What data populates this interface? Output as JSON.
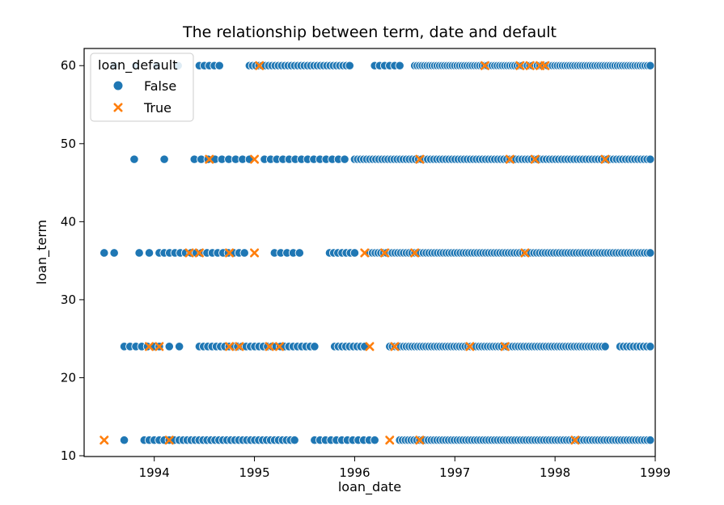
{
  "chart_data": {
    "type": "scatter",
    "title": "The relationship between term, date and default",
    "xlabel": "loan_date",
    "ylabel": "loan_term",
    "xlim": [
      1993.3,
      1999.0
    ],
    "ylim": [
      9.9,
      62.2
    ],
    "x_ticks": [
      1994,
      1995,
      1996,
      1997,
      1998,
      1999
    ],
    "x_tick_labels": [
      "1994",
      "1995",
      "1996",
      "1997",
      "1998",
      "1999"
    ],
    "y_ticks": [
      10,
      20,
      30,
      40,
      50,
      60
    ],
    "y_tick_labels": [
      "10",
      "20",
      "30",
      "40",
      "50",
      "60"
    ],
    "grid": false,
    "legend": {
      "title": "loan_default",
      "placement": "top-left",
      "entries": [
        "False",
        "True"
      ]
    },
    "colors": {
      "False": "#1f77b4",
      "True": "#ff7f0e"
    },
    "series": [
      {
        "name": "False",
        "marker": "circle",
        "ranges": [
          {
            "y": 60,
            "from": 1993.6,
            "to": 1994.45,
            "count": 5
          },
          {
            "y": 60,
            "from": 1994.45,
            "to": 1994.65,
            "count": 5
          },
          {
            "y": 60,
            "from": 1994.95,
            "to": 1995.95,
            "count": 32
          },
          {
            "y": 60,
            "from": 1996.2,
            "to": 1996.45,
            "count": 6
          },
          {
            "y": 60,
            "from": 1996.6,
            "to": 1998.95,
            "count": 95
          },
          {
            "y": 48,
            "from": 1993.8,
            "to": 1993.8,
            "count": 1
          },
          {
            "y": 48,
            "from": 1994.1,
            "to": 1994.1,
            "count": 1
          },
          {
            "y": 48,
            "from": 1994.4,
            "to": 1994.95,
            "count": 9
          },
          {
            "y": 48,
            "from": 1995.1,
            "to": 1995.9,
            "count": 14
          },
          {
            "y": 48,
            "from": 1996.0,
            "to": 1998.95,
            "count": 98
          },
          {
            "y": 36,
            "from": 1993.5,
            "to": 1993.6,
            "count": 2
          },
          {
            "y": 36,
            "from": 1993.85,
            "to": 1994.05,
            "count": 3
          },
          {
            "y": 36,
            "from": 1994.1,
            "to": 1994.9,
            "count": 16
          },
          {
            "y": 36,
            "from": 1995.2,
            "to": 1995.45,
            "count": 5
          },
          {
            "y": 36,
            "from": 1995.75,
            "to": 1996.0,
            "count": 7
          },
          {
            "y": 36,
            "from": 1996.15,
            "to": 1998.95,
            "count": 100
          },
          {
            "y": 24,
            "from": 1993.7,
            "to": 1994.05,
            "count": 7
          },
          {
            "y": 24,
            "from": 1994.15,
            "to": 1994.25,
            "count": 2
          },
          {
            "y": 24,
            "from": 1994.45,
            "to": 1995.6,
            "count": 28
          },
          {
            "y": 24,
            "from": 1995.8,
            "to": 1996.1,
            "count": 9
          },
          {
            "y": 24,
            "from": 1996.35,
            "to": 1998.5,
            "count": 78
          },
          {
            "y": 24,
            "from": 1998.65,
            "to": 1998.95,
            "count": 10
          },
          {
            "y": 12,
            "from": 1993.7,
            "to": 1993.7,
            "count": 1
          },
          {
            "y": 12,
            "from": 1993.9,
            "to": 1994.2,
            "count": 7
          },
          {
            "y": 12,
            "from": 1994.25,
            "to": 1995.4,
            "count": 30
          },
          {
            "y": 12,
            "from": 1995.6,
            "to": 1996.2,
            "count": 12
          },
          {
            "y": 12,
            "from": 1996.45,
            "to": 1998.95,
            "count": 88
          }
        ]
      },
      {
        "name": "True",
        "marker": "x",
        "points": [
          {
            "x": 1995.05,
            "y": 60
          },
          {
            "x": 1997.3,
            "y": 60
          },
          {
            "x": 1997.65,
            "y": 60
          },
          {
            "x": 1997.75,
            "y": 60
          },
          {
            "x": 1997.85,
            "y": 60
          },
          {
            "x": 1997.9,
            "y": 60
          },
          {
            "x": 1994.55,
            "y": 48
          },
          {
            "x": 1995.0,
            "y": 48
          },
          {
            "x": 1996.65,
            "y": 48
          },
          {
            "x": 1997.55,
            "y": 48
          },
          {
            "x": 1997.8,
            "y": 48
          },
          {
            "x": 1998.5,
            "y": 48
          },
          {
            "x": 1994.35,
            "y": 36
          },
          {
            "x": 1994.45,
            "y": 36
          },
          {
            "x": 1994.75,
            "y": 36
          },
          {
            "x": 1995.0,
            "y": 36
          },
          {
            "x": 1996.1,
            "y": 36
          },
          {
            "x": 1996.3,
            "y": 36
          },
          {
            "x": 1996.6,
            "y": 36
          },
          {
            "x": 1997.7,
            "y": 36
          },
          {
            "x": 1993.95,
            "y": 24
          },
          {
            "x": 1994.05,
            "y": 24
          },
          {
            "x": 1994.75,
            "y": 24
          },
          {
            "x": 1994.85,
            "y": 24
          },
          {
            "x": 1995.15,
            "y": 24
          },
          {
            "x": 1995.25,
            "y": 24
          },
          {
            "x": 1996.15,
            "y": 24
          },
          {
            "x": 1996.4,
            "y": 24
          },
          {
            "x": 1997.15,
            "y": 24
          },
          {
            "x": 1997.5,
            "y": 24
          },
          {
            "x": 1993.5,
            "y": 12
          },
          {
            "x": 1994.15,
            "y": 12
          },
          {
            "x": 1996.35,
            "y": 12
          },
          {
            "x": 1996.65,
            "y": 12
          },
          {
            "x": 1998.2,
            "y": 12
          }
        ]
      }
    ]
  }
}
